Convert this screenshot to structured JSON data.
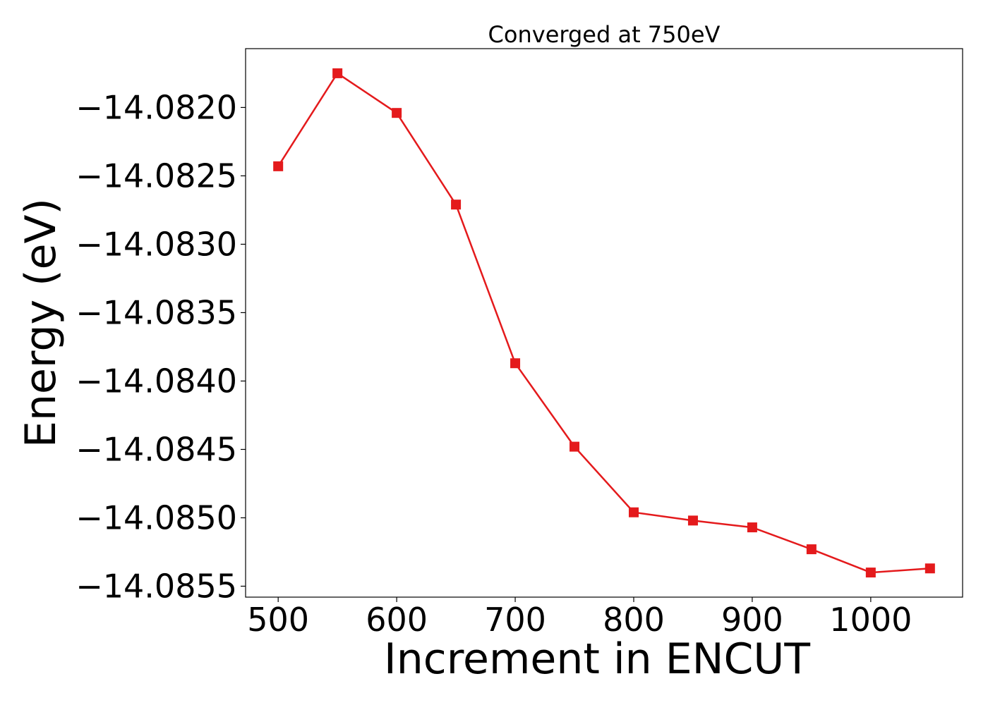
{
  "chart_data": {
    "type": "line",
    "title": "Converged at 750eV",
    "xlabel": "Increment in ENCUT",
    "ylabel": "Energy (eV)",
    "xlim": [
      472.5,
      1077.5
    ],
    "ylim": [
      -14.08558,
      -14.08157
    ],
    "xticks": [
      500,
      600,
      700,
      800,
      900,
      1000
    ],
    "xtick_labels": [
      "500",
      "600",
      "700",
      "800",
      "900",
      "1000"
    ],
    "yticks": [
      -14.082,
      -14.0825,
      -14.083,
      -14.0835,
      -14.084,
      -14.0845,
      -14.085,
      -14.0855
    ],
    "ytick_labels": [
      "−14.0820",
      "−14.0825",
      "−14.0830",
      "−14.0835",
      "−14.0840",
      "−14.0845",
      "−14.0850",
      "−14.0855"
    ],
    "grid": false,
    "series": [
      {
        "color": "#e41a1c",
        "marker": "square",
        "x": [
          500,
          550,
          600,
          650,
          700,
          750,
          800,
          850,
          900,
          950,
          1000,
          1050
        ],
        "values": [
          -14.08243,
          -14.08175,
          -14.08204,
          -14.08271,
          -14.08387,
          -14.08448,
          -14.08496,
          -14.08502,
          -14.08507,
          -14.08523,
          -14.0854,
          -14.08537
        ]
      }
    ]
  }
}
